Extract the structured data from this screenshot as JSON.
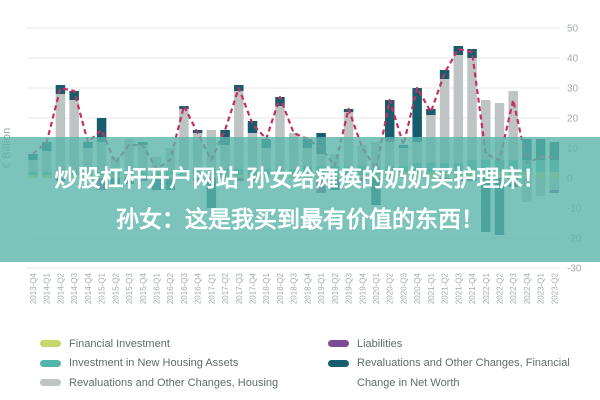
{
  "overlay": {
    "line1": "炒股杠杆开户网站 孙女给瘫痪的奶奶买护理床！",
    "line2": "孙女：这是我买到最有价值的东西！",
    "background": "#5bb5aa",
    "text_color": "#ffffff"
  },
  "y_axis_title": "€ Billion",
  "chart_data": {
    "type": "bar",
    "subtype": "stacked-bars-with-dashed-line",
    "title": "",
    "xlabel": "",
    "ylabel": "€ Billion",
    "ylim": [
      -30,
      50
    ],
    "grid": true,
    "legend_position": "bottom",
    "y_ticks": [
      50,
      40,
      30,
      20,
      10,
      0,
      -10,
      -20,
      -30
    ],
    "categories": [
      "2013-Q4",
      "2014-Q1",
      "2014-Q2",
      "2014-Q3",
      "2014-Q4",
      "2015-Q1",
      "2015-Q2",
      "2015-Q3",
      "2015-Q4",
      "2016-Q1",
      "2016-Q2",
      "2016-Q3",
      "2016-Q4",
      "2017-Q1",
      "2017-Q2",
      "2017-Q3",
      "2017-Q4",
      "2018-Q1",
      "2018-Q2",
      "2018-Q3",
      "2018-Q4",
      "2019-Q1",
      "2019-Q2",
      "2019-Q3",
      "2019-Q4",
      "2020-Q1",
      "2020-Q2",
      "2020-Q3",
      "2020-Q4",
      "2021-Q1",
      "2021-Q2",
      "2021-Q3",
      "2021-Q4",
      "2022-Q1",
      "2022-Q2",
      "2022-Q3",
      "2022-Q4",
      "2023-Q1",
      "2023-Q2"
    ],
    "series": [
      {
        "name": "Financial Investment",
        "color": "#c5d86d",
        "values": [
          1,
          1,
          1,
          1,
          1,
          1,
          1,
          1,
          1,
          1,
          1,
          1,
          1,
          1,
          1,
          1,
          1,
          1,
          1,
          1,
          1,
          1,
          1,
          1,
          1,
          1,
          2,
          2,
          2,
          2,
          2,
          2,
          2,
          2,
          2,
          2,
          2,
          2,
          2
        ]
      },
      {
        "name": "Investment in New Housing Assets",
        "color": "#52b5ac",
        "values": [
          1,
          1,
          1,
          1,
          1,
          1,
          1,
          1,
          1,
          1,
          1,
          2,
          2,
          2,
          2,
          2,
          2,
          2,
          2,
          2,
          3,
          3,
          3,
          3,
          3,
          3,
          2,
          2,
          3,
          3,
          3,
          3,
          4,
          4,
          4,
          4,
          4,
          4,
          4
        ]
      },
      {
        "name": "Revaluations and Other Changes, Housing",
        "color": "#bec4c4",
        "values": [
          4,
          7,
          26,
          24,
          8,
          10,
          5,
          11,
          9,
          5,
          8,
          20,
          12,
          13,
          8,
          26,
          12,
          7,
          21,
          12,
          6,
          4,
          4,
          18,
          7,
          8,
          8,
          6,
          7,
          16,
          28,
          36,
          34,
          20,
          19,
          23,
          -8,
          -6,
          -4
        ]
      },
      {
        "name": "Liabilities",
        "color": "#7b4b96",
        "values": [
          0,
          0,
          -1,
          0,
          0,
          -4,
          0,
          0,
          -1,
          0,
          -1,
          0,
          -1,
          -1,
          0,
          -1,
          -1,
          0,
          0,
          0,
          0,
          -5,
          0,
          0,
          -1,
          0,
          1,
          0,
          0,
          0,
          -1,
          -1,
          -1,
          0,
          0,
          0,
          0,
          0,
          -1
        ]
      },
      {
        "name": "Revaluations and Other Changes, Financial",
        "color": "#175d6e",
        "values": [
          2,
          3,
          3,
          3,
          2,
          8,
          -2,
          -2,
          1,
          -4,
          -3,
          1,
          1,
          -9,
          5,
          2,
          4,
          3,
          3,
          0,
          3,
          7,
          -4,
          1,
          0,
          -9,
          13,
          1,
          18,
          2,
          3,
          3,
          3,
          -18,
          -19,
          -3,
          7,
          7,
          6
        ]
      }
    ],
    "line_series": {
      "name": "Change in Net Worth",
      "color": "#c43061",
      "style": "dashed",
      "values": [
        8,
        12,
        30,
        29,
        12,
        16,
        5,
        11,
        11,
        3,
        6,
        24,
        15,
        6,
        16,
        30,
        18,
        13,
        27,
        15,
        13,
        10,
        4,
        23,
        10,
        3,
        26,
        11,
        30,
        22,
        35,
        43,
        42,
        8,
        6,
        26,
        5,
        7,
        7
      ]
    }
  }
}
